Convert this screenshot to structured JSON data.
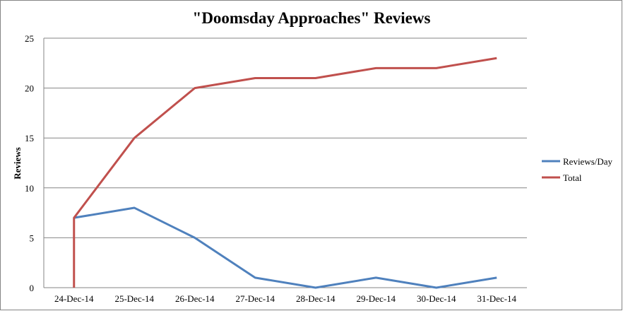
{
  "chart_data": {
    "type": "line",
    "title": "\"Doomsday Approaches\" Reviews",
    "xlabel": "",
    "ylabel": "Reviews",
    "categories": [
      "24-Dec-14",
      "25-Dec-14",
      "26-Dec-14",
      "27-Dec-14",
      "28-Dec-14",
      "29-Dec-14",
      "30-Dec-14",
      "31-Dec-14"
    ],
    "ylim": [
      0,
      25
    ],
    "yticks": [
      0,
      5,
      10,
      15,
      20,
      25
    ],
    "grid": true,
    "legend_position": "right",
    "series": [
      {
        "name": "Reviews/Day",
        "color": "#4F81BD",
        "x": [
          "24-Dec-14",
          "25-Dec-14",
          "26-Dec-14",
          "27-Dec-14",
          "28-Dec-14",
          "29-Dec-14",
          "30-Dec-14",
          "31-Dec-14"
        ],
        "values": [
          7,
          8,
          5,
          1,
          0,
          1,
          0,
          1
        ]
      },
      {
        "name": "Total",
        "color": "#C0504D",
        "x": [
          "24-Dec-14",
          "24-Dec-14",
          "25-Dec-14",
          "26-Dec-14",
          "27-Dec-14",
          "28-Dec-14",
          "29-Dec-14",
          "30-Dec-14",
          "31-Dec-14"
        ],
        "values": [
          0,
          7,
          15,
          20,
          21,
          21,
          22,
          22,
          23
        ]
      }
    ]
  }
}
